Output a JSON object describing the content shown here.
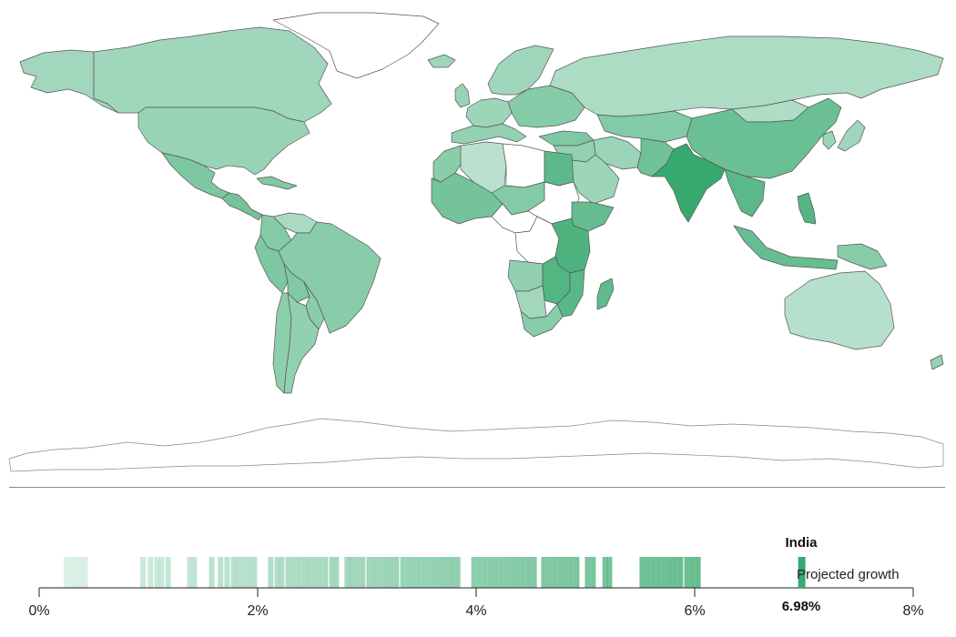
{
  "selected": {
    "country": "India",
    "caption": "Projected growth",
    "value_label": "6.98%",
    "value": 6.98
  },
  "chart_data": {
    "type": "strip",
    "x_ticks": [
      "0%",
      "2%",
      "4%",
      "6%",
      "8%"
    ],
    "xlim": [
      0,
      8
    ],
    "values": [
      0.25,
      0.28,
      0.31,
      0.34,
      0.38,
      0.42,
      0.95,
      1.02,
      1.08,
      1.12,
      1.18,
      1.38,
      1.42,
      1.58,
      1.66,
      1.72,
      1.78,
      1.82,
      1.87,
      1.92,
      1.97,
      2.12,
      2.18,
      2.22,
      2.28,
      2.33,
      2.38,
      2.43,
      2.47,
      2.52,
      2.57,
      2.62,
      2.68,
      2.72,
      2.82,
      2.86,
      2.91,
      2.96,
      3.02,
      3.07,
      3.12,
      3.17,
      3.22,
      3.27,
      3.33,
      3.38,
      3.43,
      3.48,
      3.53,
      3.58,
      3.63,
      3.68,
      3.73,
      3.78,
      3.83,
      3.98,
      4.03,
      4.08,
      4.13,
      4.18,
      4.23,
      4.28,
      4.33,
      4.38,
      4.43,
      4.48,
      4.53,
      4.62,
      4.67,
      4.72,
      4.77,
      4.82,
      4.87,
      4.92,
      5.02,
      5.07,
      5.18,
      5.22,
      5.52,
      5.57,
      5.62,
      5.67,
      5.72,
      5.77,
      5.82,
      5.87,
      5.93,
      5.98,
      6.03
    ],
    "highlight_value": 6.98
  },
  "colors": {
    "scale_low": "#e2f3ec",
    "scale_high": "#23a05f",
    "no_data": "#ffffff",
    "border": "#555555",
    "axis": "#222222"
  },
  "map": {
    "regions": [
      {
        "name": "alaska",
        "growth": 2.2
      },
      {
        "name": "canada",
        "growth": 2.3
      },
      {
        "name": "greenland",
        "growth": null
      },
      {
        "name": "usa",
        "growth": 2.6
      },
      {
        "name": "mexico",
        "growth": 3.8
      },
      {
        "name": "central-america",
        "growth": 4.2
      },
      {
        "name": "caribbean",
        "growth": 3.6
      },
      {
        "name": "venezuela",
        "growth": 1.9
      },
      {
        "name": "colombia",
        "growth": 3.4
      },
      {
        "name": "peru",
        "growth": 3.8
      },
      {
        "name": "brazil",
        "growth": 3.3
      },
      {
        "name": "bolivia",
        "growth": 3.6
      },
      {
        "name": "chile",
        "growth": 3.1
      },
      {
        "name": "argentina",
        "growth": 2.9
      },
      {
        "name": "uruguay-paraguay",
        "growth": 3.2
      },
      {
        "name": "iceland",
        "growth": 2.4
      },
      {
        "name": "scandinavia",
        "growth": 2.3
      },
      {
        "name": "uk",
        "growth": 2.6
      },
      {
        "name": "western-europe",
        "growth": 2.4
      },
      {
        "name": "southern-europe",
        "growth": 2.8
      },
      {
        "name": "eastern-europe",
        "growth": 3.4
      },
      {
        "name": "russia",
        "growth": 1.8
      },
      {
        "name": "turkey",
        "growth": 3.7
      },
      {
        "name": "middle-east",
        "growth": 2.9
      },
      {
        "name": "iran",
        "growth": 2.5
      },
      {
        "name": "central-asia",
        "growth": 3.5
      },
      {
        "name": "pakistan-afghanistan",
        "growth": 4.4
      },
      {
        "name": "india",
        "growth": 6.98
      },
      {
        "name": "china",
        "growth": 4.6
      },
      {
        "name": "mongolia",
        "growth": 1.7
      },
      {
        "name": "korea",
        "growth": 2.5
      },
      {
        "name": "japan",
        "growth": 2.3
      },
      {
        "name": "southeast-asia",
        "growth": 5.3
      },
      {
        "name": "indonesia",
        "growth": 4.8
      },
      {
        "name": "philippines",
        "growth": 5.6
      },
      {
        "name": "papua-new-guinea",
        "growth": 3.3
      },
      {
        "name": "australia",
        "growth": 1.4
      },
      {
        "name": "new-zealand",
        "growth": 2.7
      },
      {
        "name": "morocco",
        "growth": 3.2
      },
      {
        "name": "algeria",
        "growth": 1.3
      },
      {
        "name": "libya",
        "growth": null
      },
      {
        "name": "egypt",
        "growth": 5.2
      },
      {
        "name": "west-africa",
        "growth": 4.2
      },
      {
        "name": "sahel",
        "growth": 3.5
      },
      {
        "name": "sudan",
        "growth": null
      },
      {
        "name": "ethiopia",
        "growth": 4.9
      },
      {
        "name": "east-africa",
        "growth": 5.9
      },
      {
        "name": "central-africa",
        "growth": null
      },
      {
        "name": "congo",
        "growth": null
      },
      {
        "name": "angola",
        "growth": 2.9
      },
      {
        "name": "zambia-zimbabwe",
        "growth": 5.7
      },
      {
        "name": "mozambique",
        "growth": 5.4
      },
      {
        "name": "namibia-botswana",
        "growth": 2.2
      },
      {
        "name": "south-africa",
        "growth": 3.3
      },
      {
        "name": "madagascar",
        "growth": 5.1
      },
      {
        "name": "arabian-peninsula",
        "growth": 2.4
      },
      {
        "name": "antarctica",
        "growth": null
      }
    ]
  }
}
